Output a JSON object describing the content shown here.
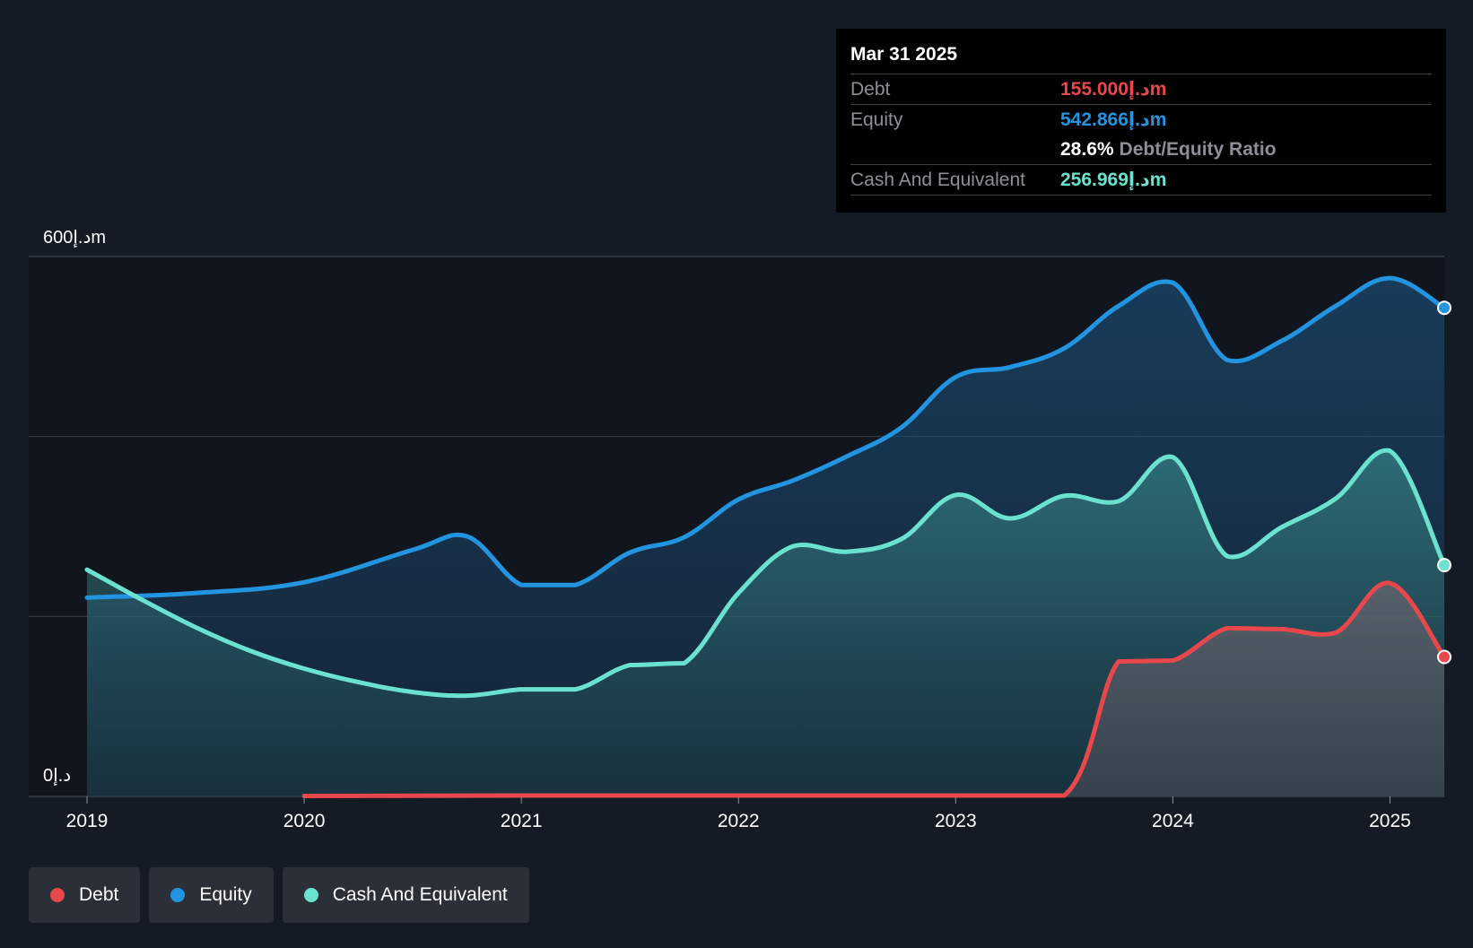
{
  "colors": {
    "background": "#151b24",
    "plot_background": "#11161e",
    "debt": "#e8474c",
    "equity": "#2394df",
    "cash": "#6be2d0",
    "grid": "#3a4049",
    "axis_text": "#ffffff"
  },
  "tooltip": {
    "date": "Mar 31 2025",
    "debt_label": "Debt",
    "debt_value": "155.000د.إm",
    "equity_label": "Equity",
    "equity_value": "542.866د.إm",
    "ratio_value": "28.6%",
    "ratio_label": "Debt/Equity Ratio",
    "cash_label": "Cash And Equivalent",
    "cash_value": "256.969د.إm"
  },
  "legend": {
    "debt": "Debt",
    "equity": "Equity",
    "cash": "Cash And Equivalent"
  },
  "chart_data": {
    "type": "area",
    "title": "",
    "xlabel": "",
    "ylabel": "",
    "y_top_label": "600د.إm",
    "y_bottom_label": "0د.إ",
    "ylim": [
      0,
      600
    ],
    "xlim": [
      2019.0,
      2025.25
    ],
    "x_ticks": [
      "2019",
      "2020",
      "2021",
      "2022",
      "2023",
      "2024",
      "2025"
    ],
    "x_tick_values": [
      2019,
      2020,
      2021,
      2022,
      2023,
      2024,
      2025
    ],
    "series": [
      {
        "name": "Equity",
        "key": "equity",
        "points": [
          [
            2019.0,
            221
          ],
          [
            2019.5,
            226
          ],
          [
            2020.0,
            238
          ],
          [
            2020.5,
            274
          ],
          [
            2020.75,
            289
          ],
          [
            2021.0,
            235
          ],
          [
            2021.25,
            235
          ],
          [
            2021.5,
            271
          ],
          [
            2021.75,
            288
          ],
          [
            2022.0,
            330
          ],
          [
            2022.25,
            351
          ],
          [
            2022.5,
            378
          ],
          [
            2022.75,
            410
          ],
          [
            2023.0,
            466
          ],
          [
            2023.25,
            477
          ],
          [
            2023.5,
            498
          ],
          [
            2023.75,
            545
          ],
          [
            2024.0,
            571
          ],
          [
            2024.25,
            485
          ],
          [
            2024.5,
            506
          ],
          [
            2024.75,
            545
          ],
          [
            2025.0,
            576
          ],
          [
            2025.25,
            543
          ]
        ]
      },
      {
        "name": "Cash And Equivalent",
        "key": "cash",
        "points": [
          [
            2019.0,
            252
          ],
          [
            2019.25,
            219
          ],
          [
            2019.5,
            188
          ],
          [
            2019.75,
            162
          ],
          [
            2020.0,
            142
          ],
          [
            2020.25,
            127
          ],
          [
            2020.5,
            116
          ],
          [
            2020.75,
            112
          ],
          [
            2021.0,
            119
          ],
          [
            2021.25,
            119
          ],
          [
            2021.5,
            146
          ],
          [
            2021.75,
            148
          ],
          [
            2022.0,
            226
          ],
          [
            2022.25,
            278
          ],
          [
            2022.5,
            272
          ],
          [
            2022.75,
            286
          ],
          [
            2023.0,
            335
          ],
          [
            2023.25,
            309
          ],
          [
            2023.5,
            334
          ],
          [
            2023.75,
            328
          ],
          [
            2024.0,
            377
          ],
          [
            2024.25,
            267
          ],
          [
            2024.5,
            299
          ],
          [
            2024.75,
            331
          ],
          [
            2025.0,
            384
          ],
          [
            2025.25,
            257
          ]
        ]
      },
      {
        "name": "Debt",
        "key": "debt",
        "points": [
          [
            2020.0,
            0.5
          ],
          [
            2021.0,
            1
          ],
          [
            2022.0,
            1
          ],
          [
            2023.0,
            1
          ],
          [
            2023.5,
            1
          ],
          [
            2023.75,
            150
          ],
          [
            2024.0,
            151
          ],
          [
            2024.25,
            187
          ],
          [
            2024.5,
            186
          ],
          [
            2024.75,
            182
          ],
          [
            2025.0,
            237
          ],
          [
            2025.25,
            155
          ]
        ]
      }
    ]
  }
}
